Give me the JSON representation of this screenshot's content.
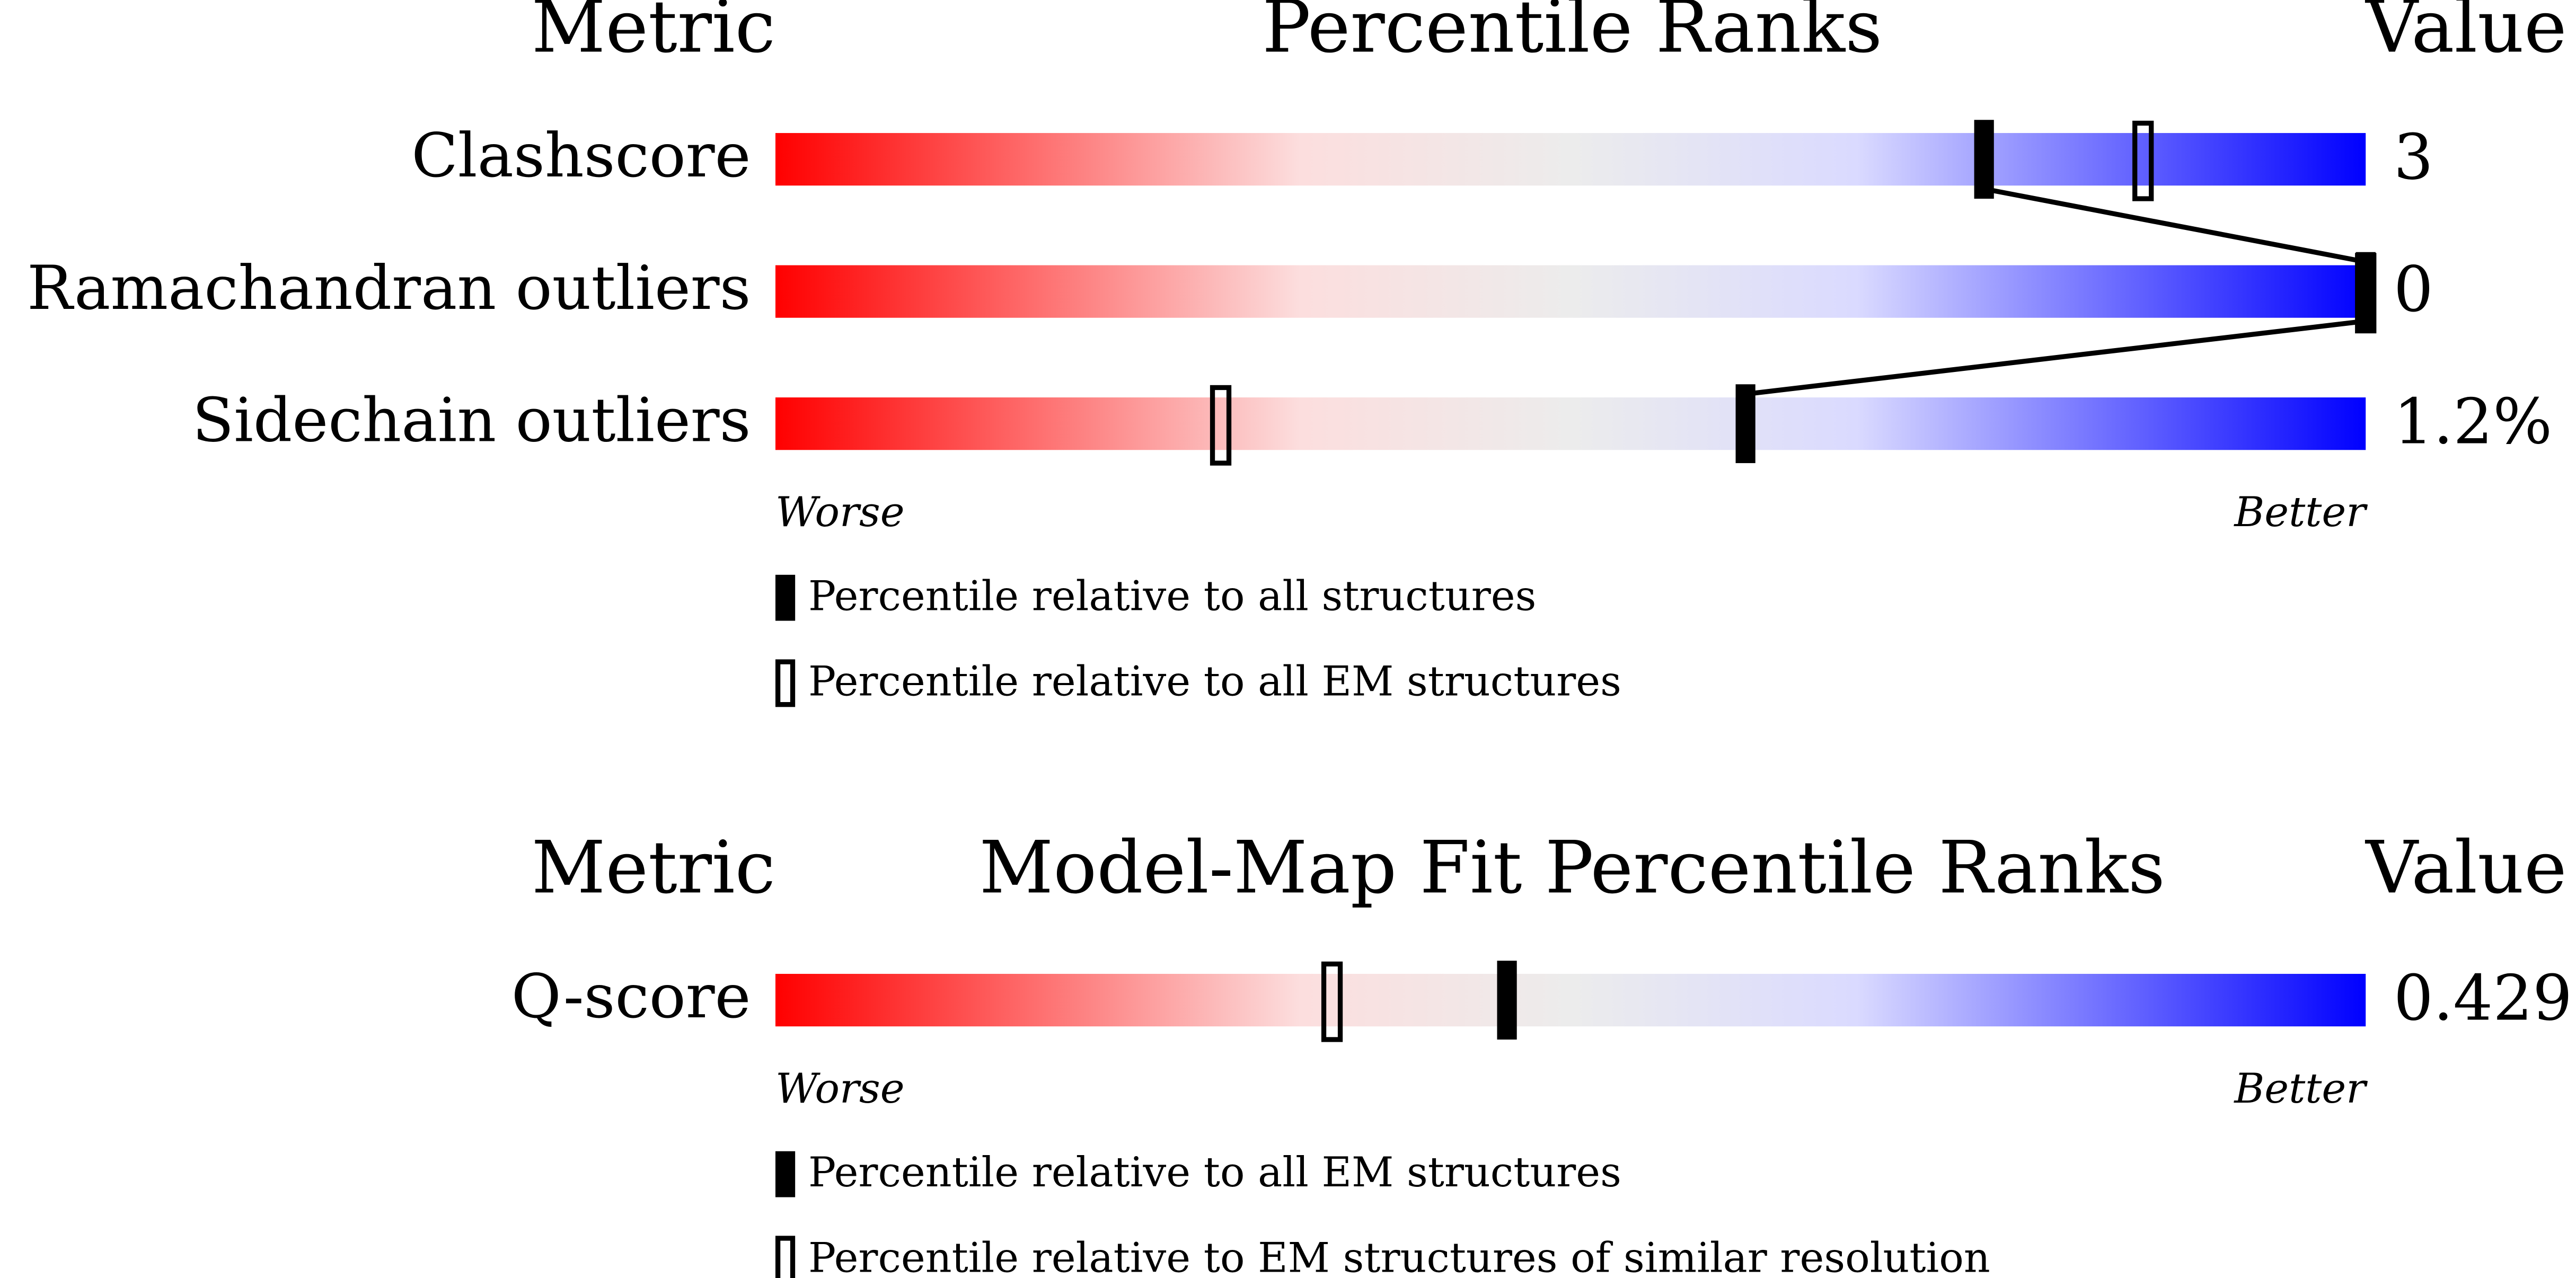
{
  "sections": [
    {
      "header": {
        "metric": "Metric",
        "title": "Percentile Ranks",
        "value": "Value"
      },
      "rows": [
        {
          "label": "Clashscore",
          "value": "3",
          "filled_percentile": 76,
          "open_percentile": 86
        },
        {
          "label": "Ramachandran outliers",
          "value": "0",
          "filled_percentile": 100,
          "open_percentile": 100
        },
        {
          "label": "Sidechain outliers",
          "value": "1.2%",
          "filled_percentile": 61,
          "open_percentile": 28
        }
      ],
      "worse": "Worse",
      "better": "Better",
      "legend": {
        "filled": "Percentile relative to all structures",
        "open": "Percentile relative to all EM structures"
      }
    },
    {
      "header": {
        "metric": "Metric",
        "title": "Model-Map Fit Percentile Ranks",
        "value": "Value"
      },
      "rows": [
        {
          "label": "Q-score",
          "value": "0.429",
          "filled_percentile": 46,
          "open_percentile": 35
        }
      ],
      "worse": "Worse",
      "better": "Better",
      "legend": {
        "filled": "Percentile relative to all EM structures",
        "open": "Percentile relative to EM structures of similar resolution"
      }
    }
  ]
}
